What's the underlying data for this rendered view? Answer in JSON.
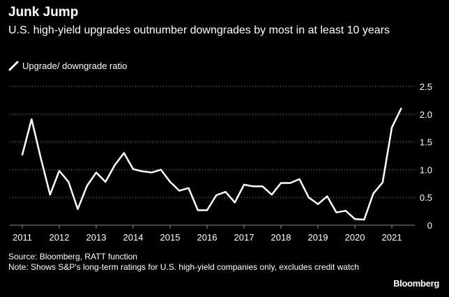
{
  "title": "Junk Jump",
  "subtitle": "U.S. high-yield upgrades outnumber downgrades by most in at least 10 years",
  "legend": {
    "label": "Upgrade/ downgrade ratio"
  },
  "footer": {
    "source": "Source: Bloomberg, RATT function",
    "note": "Note: Shows S&P's long-term ratings for U.S. high-yield companies only, excludes credit watch"
  },
  "brand": "Bloomberg",
  "colors": {
    "background": "#000000",
    "line": "#ffffff",
    "grid": "#8c8c8c",
    "text": "#ffffff"
  },
  "chart_data": {
    "type": "line",
    "title": "Junk Jump",
    "subtitle": "U.S. high-yield upgrades outnumber downgrades by most in at least 10 years",
    "xlabel": "",
    "ylabel": "",
    "grid": "horizontal dotted",
    "y_axis_side": "right",
    "ylim": [
      0,
      2.5
    ],
    "y_ticks": [
      0,
      0.5,
      1.0,
      1.5,
      2.0,
      2.5
    ],
    "y_tick_labels": [
      "0",
      "0.5",
      "1.0",
      "1.5",
      "2.0",
      "2.5"
    ],
    "xlim": [
      2011,
      2022
    ],
    "x_ticks": [
      2011,
      2012,
      2013,
      2014,
      2015,
      2016,
      2017,
      2018,
      2019,
      2020,
      2021
    ],
    "x_tick_labels": [
      "2011",
      "2012",
      "2013",
      "2014",
      "2015",
      "2016",
      "2017",
      "2018",
      "2019",
      "2020",
      "2021"
    ],
    "series": [
      {
        "name": "Upgrade/ downgrade ratio",
        "color": "#ffffff",
        "x": [
          "2011 Q1",
          "2011 Q2",
          "2011 Q3",
          "2011 Q4",
          "2012 Q1",
          "2012 Q2",
          "2012 Q3",
          "2012 Q4",
          "2013 Q1",
          "2013 Q2",
          "2013 Q3",
          "2013 Q4",
          "2014 Q1",
          "2014 Q2",
          "2014 Q3",
          "2014 Q4",
          "2015 Q1",
          "2015 Q2",
          "2015 Q3",
          "2015 Q4",
          "2016 Q1",
          "2016 Q2",
          "2016 Q3",
          "2016 Q4",
          "2017 Q1",
          "2017 Q2",
          "2017 Q3",
          "2017 Q4",
          "2018 Q1",
          "2018 Q2",
          "2018 Q3",
          "2018 Q4",
          "2019 Q1",
          "2019 Q2",
          "2019 Q3",
          "2019 Q4",
          "2020 Q1",
          "2020 Q2",
          "2020 Q3",
          "2020 Q4",
          "2021 Q1",
          "2021 Q2"
        ],
        "values": [
          1.27,
          1.91,
          1.21,
          0.55,
          0.98,
          0.78,
          0.29,
          0.71,
          0.95,
          0.78,
          1.08,
          1.3,
          1.01,
          0.97,
          0.95,
          1.0,
          0.78,
          0.62,
          0.67,
          0.27,
          0.27,
          0.54,
          0.6,
          0.41,
          0.73,
          0.7,
          0.7,
          0.55,
          0.76,
          0.76,
          0.83,
          0.5,
          0.38,
          0.52,
          0.23,
          0.26,
          0.11,
          0.1,
          0.57,
          0.77,
          1.76,
          2.1
        ]
      }
    ]
  }
}
